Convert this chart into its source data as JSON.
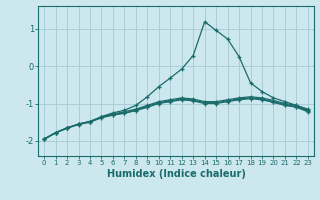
{
  "xlabel": "Humidex (Indice chaleur)",
  "ylabel": "",
  "bg_color": "#cce8ee",
  "grid_color": "#aacdd5",
  "line_color": "#1a6b6b",
  "xlim": [
    -0.5,
    23.5
  ],
  "ylim": [
    -2.4,
    1.6
  ],
  "x": [
    0,
    1,
    2,
    3,
    4,
    5,
    6,
    7,
    8,
    9,
    10,
    11,
    12,
    13,
    14,
    15,
    16,
    17,
    18,
    19,
    20,
    21,
    22,
    23
  ],
  "line1": [
    -1.95,
    -1.78,
    -1.65,
    -1.55,
    -1.48,
    -1.35,
    -1.25,
    -1.18,
    -1.05,
    -0.82,
    -0.55,
    -0.32,
    -0.08,
    0.28,
    1.18,
    0.95,
    0.72,
    0.25,
    -0.45,
    -0.68,
    -0.85,
    -0.95,
    -1.05,
    -1.15
  ],
  "line2": [
    -1.95,
    -1.78,
    -1.65,
    -1.55,
    -1.48,
    -1.36,
    -1.28,
    -1.22,
    -1.15,
    -1.05,
    -0.95,
    -0.9,
    -0.85,
    -0.88,
    -0.95,
    -0.95,
    -0.9,
    -0.85,
    -0.82,
    -0.85,
    -0.92,
    -1.0,
    -1.05,
    -1.18
  ],
  "line3": [
    -1.95,
    -1.78,
    -1.65,
    -1.55,
    -1.48,
    -1.37,
    -1.3,
    -1.25,
    -1.18,
    -1.08,
    -0.98,
    -0.93,
    -0.88,
    -0.91,
    -0.98,
    -0.98,
    -0.93,
    -0.88,
    -0.85,
    -0.88,
    -0.95,
    -1.03,
    -1.08,
    -1.2
  ],
  "line4": [
    -1.95,
    -1.78,
    -1.66,
    -1.56,
    -1.5,
    -1.38,
    -1.31,
    -1.26,
    -1.19,
    -1.1,
    -1.0,
    -0.95,
    -0.9,
    -0.93,
    -1.0,
    -1.0,
    -0.95,
    -0.9,
    -0.87,
    -0.9,
    -0.97,
    -1.05,
    -1.1,
    -1.22
  ],
  "yticks": [
    -2,
    -1,
    0,
    1
  ],
  "xticks": [
    0,
    1,
    2,
    3,
    4,
    5,
    6,
    7,
    8,
    9,
    10,
    11,
    12,
    13,
    14,
    15,
    16,
    17,
    18,
    19,
    20,
    21,
    22,
    23
  ]
}
